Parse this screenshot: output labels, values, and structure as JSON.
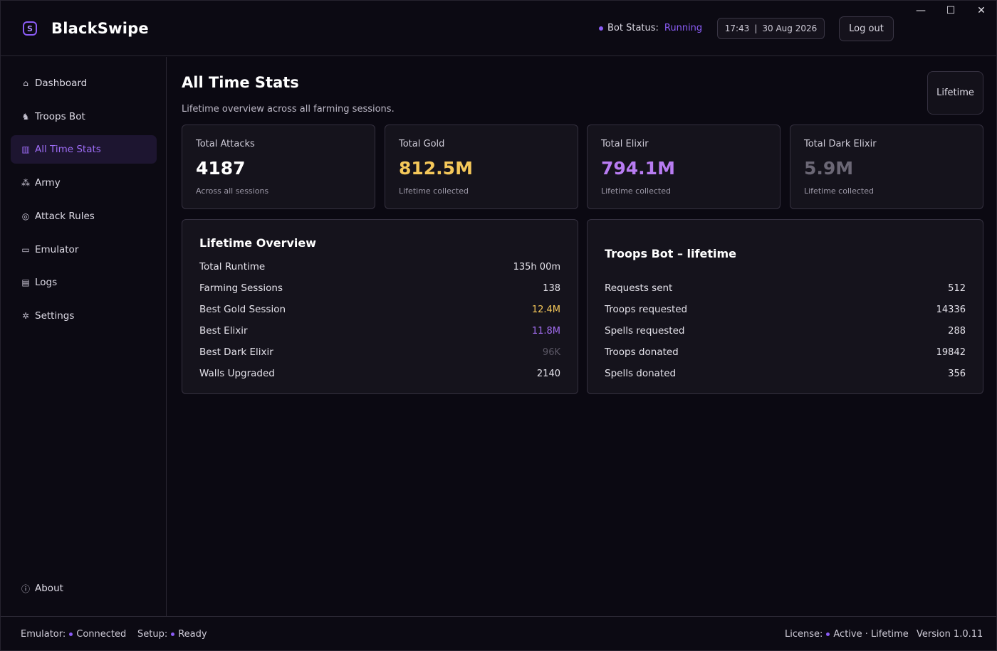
{
  "app": {
    "title": "BlackSwipe",
    "logo_glyph": "S"
  },
  "header": {
    "bot_status_label": "Bot Status:",
    "bot_status_value": "Running",
    "time": "17:43",
    "separator": "|",
    "date": "30 Aug 2026",
    "logout_label": "Log out",
    "window_controls": {
      "minimize": "—",
      "maximize": "☐",
      "close": "✕"
    }
  },
  "sidebar": {
    "items": [
      {
        "label": "Dashboard",
        "icon": "home-icon",
        "glyph": "⌂"
      },
      {
        "label": "Troops Bot",
        "icon": "users-icon",
        "glyph": "♞"
      },
      {
        "label": "All Time Stats",
        "icon": "bar-chart-icon",
        "glyph": "▥",
        "active": true
      },
      {
        "label": "Army",
        "icon": "army-icon",
        "glyph": "⁂"
      },
      {
        "label": "Attack Rules",
        "icon": "target-icon",
        "glyph": "◎"
      },
      {
        "label": "Emulator",
        "icon": "monitor-icon",
        "glyph": "▭"
      },
      {
        "label": "Logs",
        "icon": "document-icon",
        "glyph": "▤"
      },
      {
        "label": "Settings",
        "icon": "gear-icon",
        "glyph": "✲"
      }
    ],
    "about": {
      "label": "About",
      "icon": "info-icon",
      "glyph": "ⓘ"
    }
  },
  "main": {
    "title": "All Time Stats",
    "subtitle": "Lifetime overview across all farming sessions.",
    "range_button": "Lifetime",
    "cards": [
      {
        "label": "Total Attacks",
        "value": "4187",
        "note": "Across all sessions",
        "color": "#ffffff"
      },
      {
        "label": "Total Gold",
        "value": "812.5M",
        "note": "Lifetime collected",
        "color": "#f5c85a"
      },
      {
        "label": "Total Elixir",
        "value": "794.1M",
        "note": "Lifetime collected",
        "color": "#b87cf2"
      },
      {
        "label": "Total Dark Elixir",
        "value": "5.9M",
        "note": "Lifetime collected",
        "color": "#6b6775"
      }
    ],
    "lifetime_overview": {
      "title": "Lifetime Overview",
      "rows": [
        {
          "label": "Total Runtime",
          "value": "135h 00m",
          "color": "#e4e2ea"
        },
        {
          "label": "Farming Sessions",
          "value": "138",
          "color": "#e4e2ea"
        },
        {
          "label": "Best Gold Session",
          "value": "12.4M",
          "color": "#f5c85a"
        },
        {
          "label": "Best Elixir",
          "value": "11.8M",
          "color": "#a36ef2"
        },
        {
          "label": "Best Dark Elixir",
          "value": "96K",
          "color": "#5c5866"
        },
        {
          "label": "Walls Upgraded",
          "value": "2140",
          "color": "#e4e2ea"
        }
      ]
    },
    "troops_bot": {
      "title": "Troops Bot – lifetime",
      "rows": [
        {
          "label": "Requests sent",
          "value": "512"
        },
        {
          "label": "Troops requested",
          "value": "14336"
        },
        {
          "label": "Spells requested",
          "value": "288"
        },
        {
          "label": "Troops donated",
          "value": "19842"
        },
        {
          "label": "Spells donated",
          "value": "356"
        }
      ]
    }
  },
  "footer": {
    "emulator_label": "Emulator:",
    "emulator_value": "Connected",
    "setup_label": "Setup:",
    "setup_value": "Ready",
    "license_label": "License:",
    "license_value": "Active · Lifetime",
    "version": "Version 1.0.11"
  },
  "colors": {
    "accent": "#8b5cf6",
    "background": "#0b0912",
    "card": "#15131c"
  }
}
